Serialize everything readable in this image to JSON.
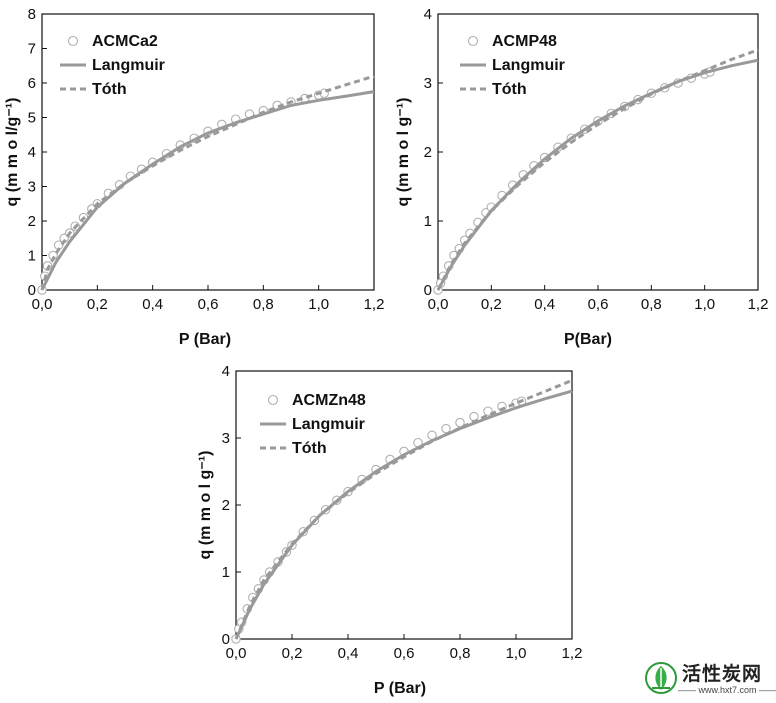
{
  "colors": {
    "curve": "#999999",
    "marker": "#b0b0b0",
    "axis": "#111111"
  },
  "chart_data": [
    {
      "type": "scatter",
      "title": "",
      "xlabel": "P (Bar)",
      "ylabel": "q (m m o l/g⁻¹)",
      "xlim": [
        0,
        1.2
      ],
      "ylim": [
        0,
        8
      ],
      "xticks": [
        "0,0",
        "0,2",
        "0,4",
        "0,6",
        "0,8",
        "1,0",
        "1,2"
      ],
      "yticks": [
        "0",
        "1",
        "2",
        "3",
        "4",
        "5",
        "6",
        "7",
        "8"
      ],
      "legend_placement": "top-left",
      "series": [
        {
          "name": "ACMCa2",
          "kind": "markers",
          "x": [
            0.0,
            0.01,
            0.02,
            0.04,
            0.06,
            0.08,
            0.1,
            0.12,
            0.15,
            0.18,
            0.2,
            0.24,
            0.28,
            0.32,
            0.36,
            0.4,
            0.45,
            0.5,
            0.55,
            0.6,
            0.65,
            0.7,
            0.75,
            0.8,
            0.85,
            0.9,
            0.95,
            1.0,
            1.02
          ],
          "y": [
            0.0,
            0.4,
            0.7,
            1.0,
            1.3,
            1.5,
            1.65,
            1.85,
            2.1,
            2.35,
            2.5,
            2.8,
            3.05,
            3.3,
            3.5,
            3.7,
            3.95,
            4.2,
            4.4,
            4.6,
            4.8,
            4.95,
            5.1,
            5.2,
            5.35,
            5.45,
            5.55,
            5.65,
            5.7
          ]
        },
        {
          "name": "Langmuir",
          "kind": "solid",
          "x": [
            0.0,
            0.05,
            0.1,
            0.2,
            0.3,
            0.4,
            0.5,
            0.6,
            0.7,
            0.8,
            0.9,
            1.0,
            1.1,
            1.2
          ],
          "y": [
            0.0,
            0.8,
            1.4,
            2.4,
            3.1,
            3.65,
            4.15,
            4.55,
            4.85,
            5.1,
            5.35,
            5.5,
            5.62,
            5.75
          ]
        },
        {
          "name": "Tóth",
          "kind": "dashed",
          "x": [
            0.0,
            0.02,
            0.05,
            0.1,
            0.2,
            0.3,
            0.4,
            0.5,
            0.6,
            0.7,
            0.8,
            0.9,
            1.0,
            1.1,
            1.2
          ],
          "y": [
            0.0,
            0.6,
            1.05,
            1.65,
            2.5,
            3.1,
            3.6,
            4.05,
            4.45,
            4.8,
            5.15,
            5.45,
            5.7,
            5.95,
            6.2
          ]
        }
      ]
    },
    {
      "type": "scatter",
      "title": "",
      "xlabel": "P(Bar)",
      "ylabel": "q (m m o l g⁻¹)",
      "xlim": [
        0,
        1.2
      ],
      "ylim": [
        0,
        4
      ],
      "xticks": [
        "0,0",
        "0,2",
        "0,4",
        "0,6",
        "0,8",
        "1,0",
        "1,2"
      ],
      "yticks": [
        "0",
        "1",
        "2",
        "3",
        "4"
      ],
      "legend_placement": "top-left",
      "series": [
        {
          "name": "ACMP48",
          "kind": "markers",
          "x": [
            0.0,
            0.01,
            0.02,
            0.04,
            0.06,
            0.08,
            0.1,
            0.12,
            0.15,
            0.18,
            0.2,
            0.24,
            0.28,
            0.32,
            0.36,
            0.4,
            0.45,
            0.5,
            0.55,
            0.6,
            0.65,
            0.7,
            0.75,
            0.8,
            0.85,
            0.9,
            0.95,
            1.0,
            1.02
          ],
          "y": [
            0.0,
            0.1,
            0.2,
            0.35,
            0.5,
            0.6,
            0.72,
            0.82,
            0.98,
            1.12,
            1.2,
            1.37,
            1.52,
            1.67,
            1.8,
            1.92,
            2.07,
            2.2,
            2.33,
            2.45,
            2.56,
            2.66,
            2.76,
            2.85,
            2.93,
            3.0,
            3.07,
            3.13,
            3.16
          ]
        },
        {
          "name": "Langmuir",
          "kind": "solid",
          "x": [
            0.0,
            0.05,
            0.1,
            0.2,
            0.3,
            0.4,
            0.5,
            0.6,
            0.7,
            0.8,
            0.9,
            1.0,
            1.1,
            1.2
          ],
          "y": [
            0.0,
            0.35,
            0.65,
            1.15,
            1.55,
            1.9,
            2.2,
            2.45,
            2.67,
            2.85,
            3.02,
            3.15,
            3.25,
            3.33
          ]
        },
        {
          "name": "Tóth",
          "kind": "dashed",
          "x": [
            0.0,
            0.05,
            0.1,
            0.2,
            0.3,
            0.4,
            0.5,
            0.6,
            0.7,
            0.8,
            0.9,
            1.0,
            1.1,
            1.2
          ],
          "y": [
            0.0,
            0.38,
            0.68,
            1.15,
            1.52,
            1.85,
            2.14,
            2.4,
            2.63,
            2.84,
            3.02,
            3.18,
            3.34,
            3.48
          ]
        }
      ]
    },
    {
      "type": "scatter",
      "title": "",
      "xlabel": "P (Bar)",
      "ylabel": "q (m m o l g⁻¹)",
      "xlim": [
        0,
        1.2
      ],
      "ylim": [
        0,
        4
      ],
      "xticks": [
        "0,0",
        "0,2",
        "0,4",
        "0,6",
        "0,8",
        "1,0",
        "1,2"
      ],
      "yticks": [
        "0",
        "1",
        "2",
        "3",
        "4"
      ],
      "legend_placement": "top-left",
      "series": [
        {
          "name": "ACMZn48",
          "kind": "markers",
          "x": [
            0.0,
            0.01,
            0.02,
            0.04,
            0.06,
            0.08,
            0.1,
            0.12,
            0.15,
            0.18,
            0.2,
            0.24,
            0.28,
            0.32,
            0.36,
            0.4,
            0.45,
            0.5,
            0.55,
            0.6,
            0.65,
            0.7,
            0.75,
            0.8,
            0.85,
            0.9,
            0.95,
            1.0,
            1.02
          ],
          "y": [
            0.0,
            0.15,
            0.25,
            0.45,
            0.62,
            0.75,
            0.88,
            1.0,
            1.15,
            1.3,
            1.4,
            1.6,
            1.77,
            1.93,
            2.07,
            2.2,
            2.38,
            2.53,
            2.68,
            2.8,
            2.93,
            3.04,
            3.14,
            3.23,
            3.32,
            3.4,
            3.47,
            3.52,
            3.55
          ]
        },
        {
          "name": "Langmuir",
          "kind": "solid",
          "x": [
            0.0,
            0.05,
            0.1,
            0.2,
            0.3,
            0.4,
            0.5,
            0.6,
            0.7,
            0.8,
            0.9,
            1.0,
            1.1,
            1.2
          ],
          "y": [
            0.0,
            0.45,
            0.82,
            1.4,
            1.85,
            2.2,
            2.5,
            2.75,
            2.96,
            3.14,
            3.3,
            3.45,
            3.58,
            3.7
          ]
        },
        {
          "name": "Tóth",
          "kind": "dashed",
          "x": [
            0.0,
            0.05,
            0.1,
            0.2,
            0.3,
            0.4,
            0.5,
            0.6,
            0.7,
            0.8,
            0.9,
            1.0,
            1.1,
            1.2
          ],
          "y": [
            0.0,
            0.5,
            0.88,
            1.42,
            1.85,
            2.18,
            2.47,
            2.72,
            2.95,
            3.15,
            3.34,
            3.52,
            3.69,
            3.86
          ]
        }
      ]
    }
  ],
  "watermark": {
    "title": "活性炭网",
    "url": "www.hxt7.com"
  }
}
